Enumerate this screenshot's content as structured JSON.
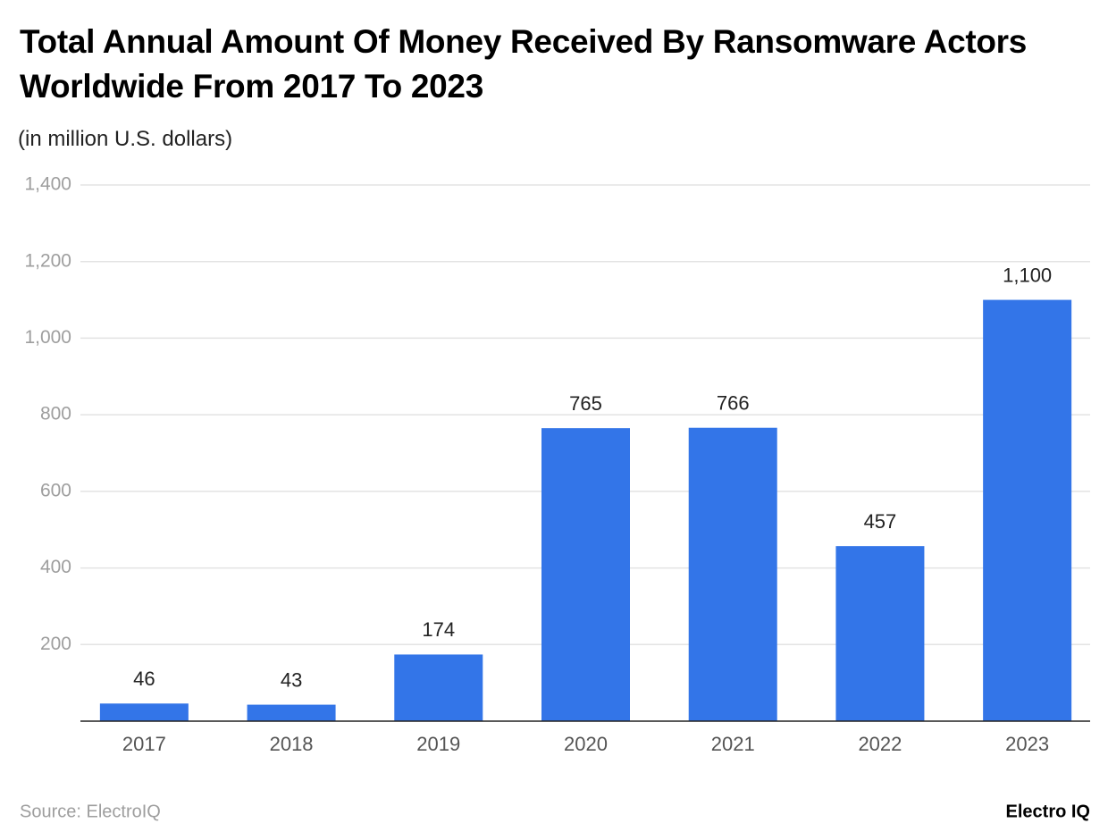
{
  "chart_data": {
    "type": "bar",
    "title": "Total Annual Amount Of Money Received By Ransomware Actors Worldwide From 2017 To 2023",
    "subtitle": "(in million U.S. dollars)",
    "categories": [
      "2017",
      "2018",
      "2019",
      "2020",
      "2021",
      "2022",
      "2023"
    ],
    "values": [
      46,
      43,
      174,
      765,
      766,
      457,
      1100
    ],
    "value_labels": [
      "46",
      "43",
      "174",
      "765",
      "766",
      "457",
      "1,100"
    ],
    "color": "#3375e8",
    "ylim": [
      0,
      1400
    ],
    "yticks": [
      200,
      400,
      600,
      800,
      {
        "value": 1000,
        "label": "1,000"
      },
      {
        "value": 1200,
        "label": "1,200"
      },
      {
        "value": 1400,
        "label": "1,400"
      }
    ],
    "grid": true,
    "source": "Source: ElectroIQ",
    "brand": "Electro IQ"
  }
}
